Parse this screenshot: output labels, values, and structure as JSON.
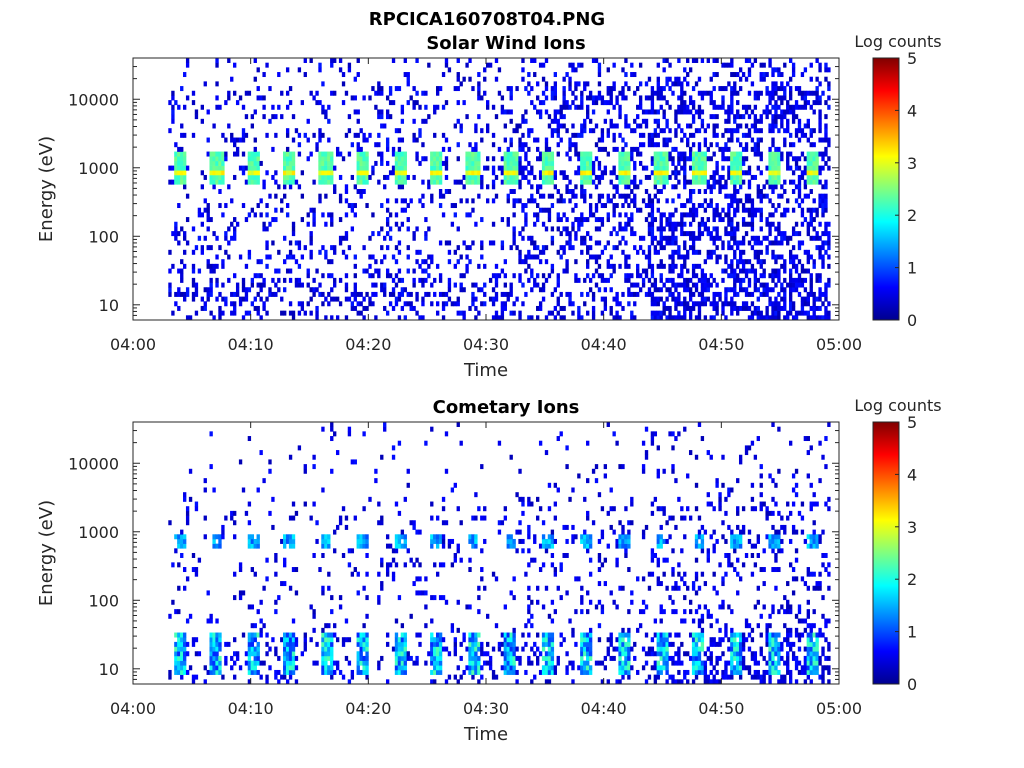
{
  "figure_title": "RPCICA160708T04.PNG",
  "chart_data": [
    {
      "type": "heatmap",
      "title": "Solar Wind Ions",
      "xlabel": "Time",
      "ylabel": "Energy (eV)",
      "x_ticks": [
        "04:00",
        "04:10",
        "04:20",
        "04:30",
        "04:40",
        "04:50",
        "05:00"
      ],
      "xlim": [
        "04:00",
        "05:00"
      ],
      "y_scale": "log",
      "y_ticks": [
        10,
        100,
        1000,
        10000
      ],
      "y_tick_labels": [
        "10",
        "100",
        "1000",
        "10000"
      ],
      "ylim": [
        6,
        40000
      ],
      "colorbar": {
        "label": "Log counts",
        "range": [
          0,
          5
        ],
        "ticks": [
          "0",
          "1",
          "2",
          "3",
          "4",
          "5"
        ],
        "colormap": "jet"
      },
      "first_data_time": "04:03",
      "peak_energy_eV": [
        700,
        1500
      ],
      "peak_log_counts": 3.2,
      "burst_times_min": [
        4.0,
        7.1,
        10.2,
        13.3,
        16.4,
        19.5,
        22.7,
        25.8,
        28.9,
        32.1,
        35.3,
        38.5,
        41.7,
        44.9,
        48.1,
        51.3,
        54.5,
        57.7
      ],
      "dense_after_time": "04:44"
    },
    {
      "type": "heatmap",
      "title": "Cometary Ions",
      "xlabel": "Time",
      "ylabel": "Energy (eV)",
      "x_ticks": [
        "04:00",
        "04:10",
        "04:20",
        "04:30",
        "04:40",
        "04:50",
        "05:00"
      ],
      "xlim": [
        "04:00",
        "05:00"
      ],
      "y_scale": "log",
      "y_ticks": [
        10,
        100,
        1000,
        10000
      ],
      "y_tick_labels": [
        "10",
        "100",
        "1000",
        "10000"
      ],
      "ylim": [
        6,
        40000
      ],
      "colorbar": {
        "label": "Log counts",
        "range": [
          0,
          5
        ],
        "ticks": [
          "0",
          "1",
          "2",
          "3",
          "4",
          "5"
        ],
        "colormap": "jet"
      },
      "first_data_time": "04:03",
      "peak_energy_eV": [
        8,
        30
      ],
      "peak_log_counts": 2.3,
      "burst_times_min": [
        4.0,
        7.1,
        10.2,
        13.3,
        16.4,
        19.5,
        22.7,
        25.8,
        28.9,
        32.1,
        35.3,
        38.5,
        41.7,
        44.9,
        48.1,
        51.3,
        54.5,
        57.7
      ],
      "dense_after_time": "04:44"
    }
  ]
}
